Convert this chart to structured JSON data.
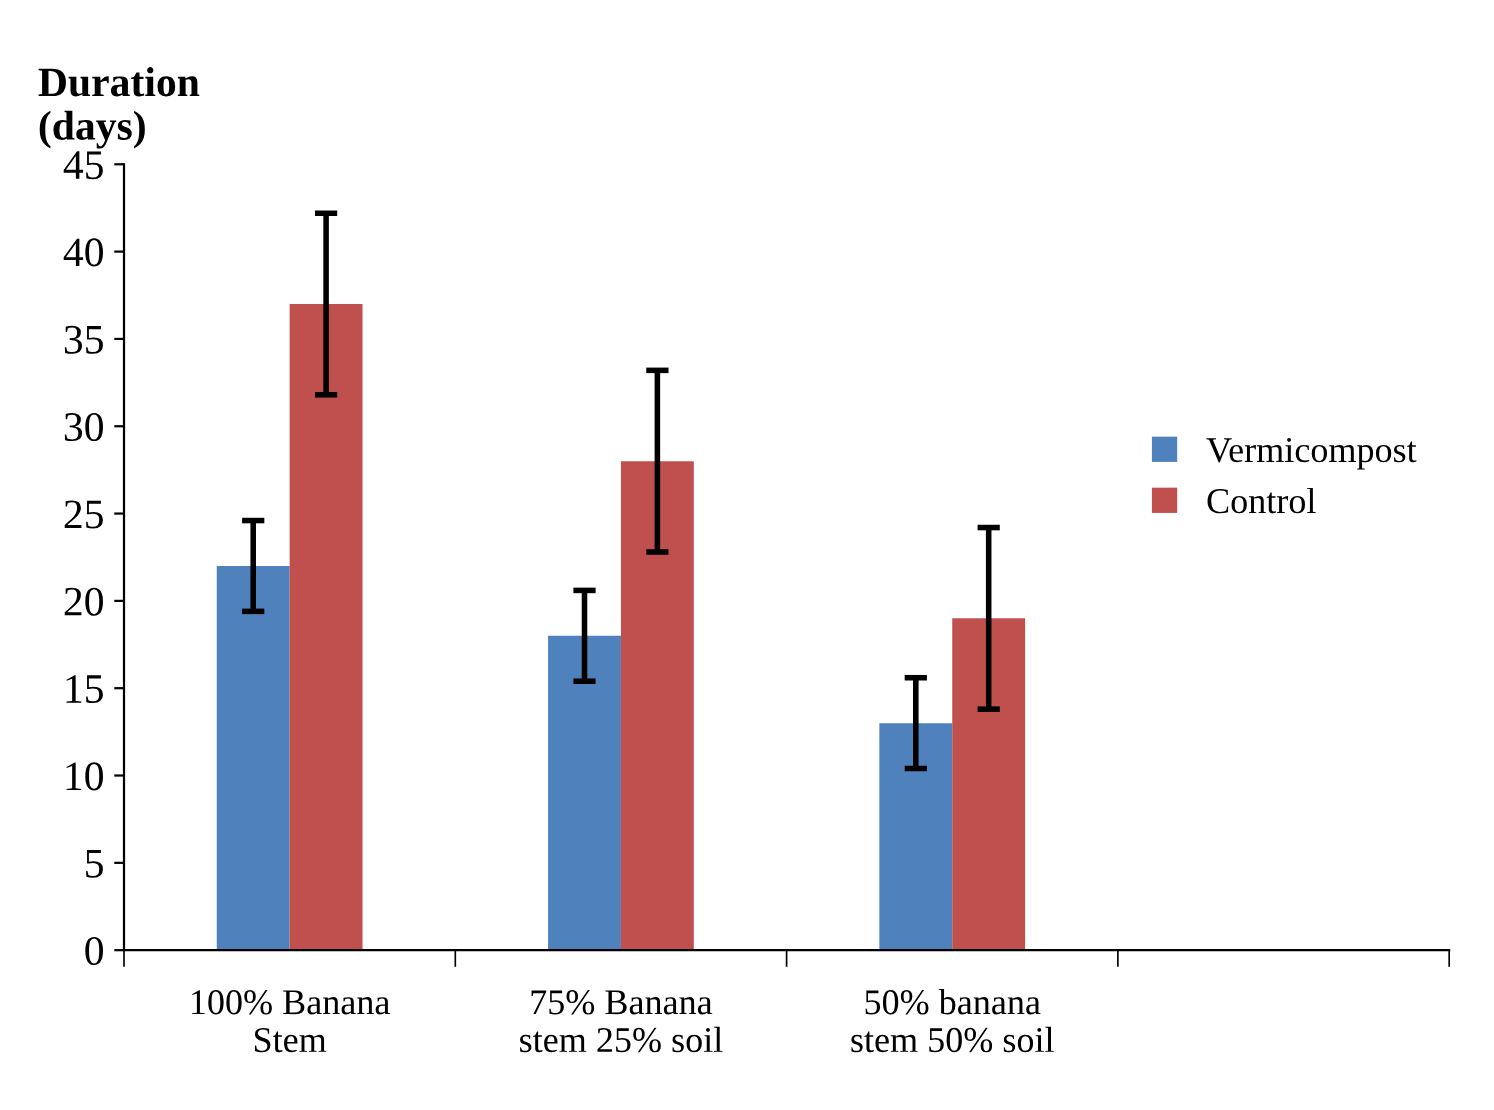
{
  "chart_data": {
    "type": "bar",
    "ylabel": "Duration\n(days)",
    "categories": [
      "100% Banana\nStem",
      "75% Banana\nstem 25% soil",
      "50% banana\nstem 50% soil",
      null
    ],
    "series": [
      {
        "name": "Vermicompost",
        "color": "#4f81bd",
        "values": [
          22,
          18,
          13,
          null
        ],
        "errors": [
          2.6,
          2.6,
          2.6,
          null
        ]
      },
      {
        "name": "Control",
        "color": "#c0504d",
        "values": [
          37,
          28,
          19,
          null
        ],
        "errors": [
          5.2,
          5.2,
          5.2,
          null
        ]
      }
    ],
    "ylim": [
      0,
      45
    ],
    "yticks": [
      0,
      5,
      10,
      15,
      20,
      25,
      30,
      35,
      40,
      45
    ],
    "grid": false,
    "legend": "right"
  }
}
